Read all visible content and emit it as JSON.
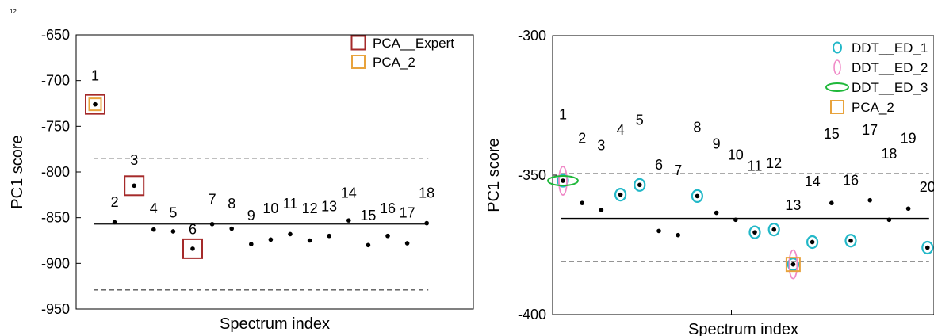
{
  "figure": {
    "corner_label": "12"
  },
  "chart_data": [
    {
      "type": "scatter",
      "xlabel": "Spectrum index",
      "ylabel": "PC1 score",
      "ylim": [
        -950,
        -650
      ],
      "yticks": [
        "-650",
        "-700",
        "-750",
        "-800",
        "-850",
        "-900",
        "-950"
      ],
      "ytick_values": [
        -650,
        -700,
        -750,
        -800,
        -850,
        -900,
        -950
      ],
      "grid": false,
      "legend_position": "top-right",
      "x": [
        1,
        2,
        3,
        4,
        5,
        6,
        7,
        8,
        9,
        10,
        11,
        12,
        13,
        14,
        15,
        16,
        17,
        18
      ],
      "point_labels": [
        "1",
        "2",
        "3",
        "4",
        "5",
        "6",
        "7",
        "8",
        "9",
        "10",
        "11",
        "12",
        "13",
        "14",
        "15",
        "16",
        "17",
        "18"
      ],
      "y": [
        -726,
        -855,
        -815,
        -863,
        -865,
        -884,
        -857,
        -862,
        -879,
        -874,
        -868,
        -875,
        -870,
        -853,
        -880,
        -870,
        -878,
        -856
      ],
      "label_y": [
        -700,
        -838,
        -792,
        -845,
        -850,
        -868,
        -835,
        -840,
        -853,
        -845,
        -840,
        -845,
        -843,
        -828,
        -853,
        -845,
        -850,
        -828
      ],
      "mean_line": -857,
      "threshold_lines": [
        -785,
        -929
      ],
      "markers": [
        {
          "series": "PCA__Expert",
          "points": [
            1,
            3,
            6
          ]
        },
        {
          "series": "PCA_2",
          "points": [
            1
          ]
        }
      ],
      "legend": [
        {
          "name": "PCA__Expert",
          "symbol": "square",
          "color": "#a52a2a"
        },
        {
          "name": "PCA_2",
          "symbol": "square",
          "color": "#e8a33d"
        }
      ]
    },
    {
      "type": "scatter",
      "xlabel": "Spectrum index",
      "ylabel": "PC1 score",
      "ylim": [
        -400,
        -300
      ],
      "yticks": [
        "-300",
        "-350",
        "-400"
      ],
      "ytick_values": [
        -300,
        -350,
        -400
      ],
      "grid": false,
      "legend_position": "top-right",
      "x": [
        1,
        2,
        3,
        4,
        5,
        6,
        7,
        8,
        9,
        10,
        11,
        12,
        13,
        14,
        15,
        16,
        17,
        18,
        19,
        20
      ],
      "point_labels": [
        "1",
        "2",
        "3",
        "4",
        "5",
        "6",
        "7",
        "8",
        "9",
        "10",
        "11",
        "12",
        "13",
        "14",
        "15",
        "16",
        "17",
        "18",
        "19",
        "20"
      ],
      "y": [
        -352,
        -360,
        -362.5,
        -357,
        -353.5,
        -370,
        -371.5,
        -357.5,
        -363.5,
        -366,
        -370.5,
        -369.5,
        -382,
        -374,
        -360,
        -373.5,
        -359,
        -366,
        -362,
        -376
      ],
      "label_y": [
        -330,
        -338.5,
        -341,
        -335.5,
        -332,
        -348,
        -350,
        -334.5,
        -340.5,
        -344.5,
        -348.5,
        -347.5,
        -362.5,
        -354,
        -337,
        -353.5,
        -335.5,
        -344,
        -338.5,
        -356
      ],
      "mean_line": -365.5,
      "threshold_lines": [
        -349.5,
        -381
      ],
      "markers": [
        {
          "series": "DDT__ED_1",
          "points": [
            1,
            4,
            5,
            8,
            11,
            12,
            13,
            14,
            16,
            20
          ]
        },
        {
          "series": "DDT__ED_2",
          "points": [
            1,
            13
          ]
        },
        {
          "series": "DDT__ED_3",
          "points": [
            1
          ]
        },
        {
          "series": "PCA_2",
          "points": [
            13
          ]
        }
      ],
      "legend": [
        {
          "name": "DDT__ED_1",
          "symbol": "circle",
          "color": "#22b8c8"
        },
        {
          "name": "DDT__ED_2",
          "symbol": "tall-ellipse",
          "color": "#f08bc8"
        },
        {
          "name": "DDT__ED_3",
          "symbol": "wide-ellipse",
          "color": "#1fb83a"
        },
        {
          "name": "PCA_2",
          "symbol": "square",
          "color": "#e8a33d"
        }
      ]
    }
  ]
}
